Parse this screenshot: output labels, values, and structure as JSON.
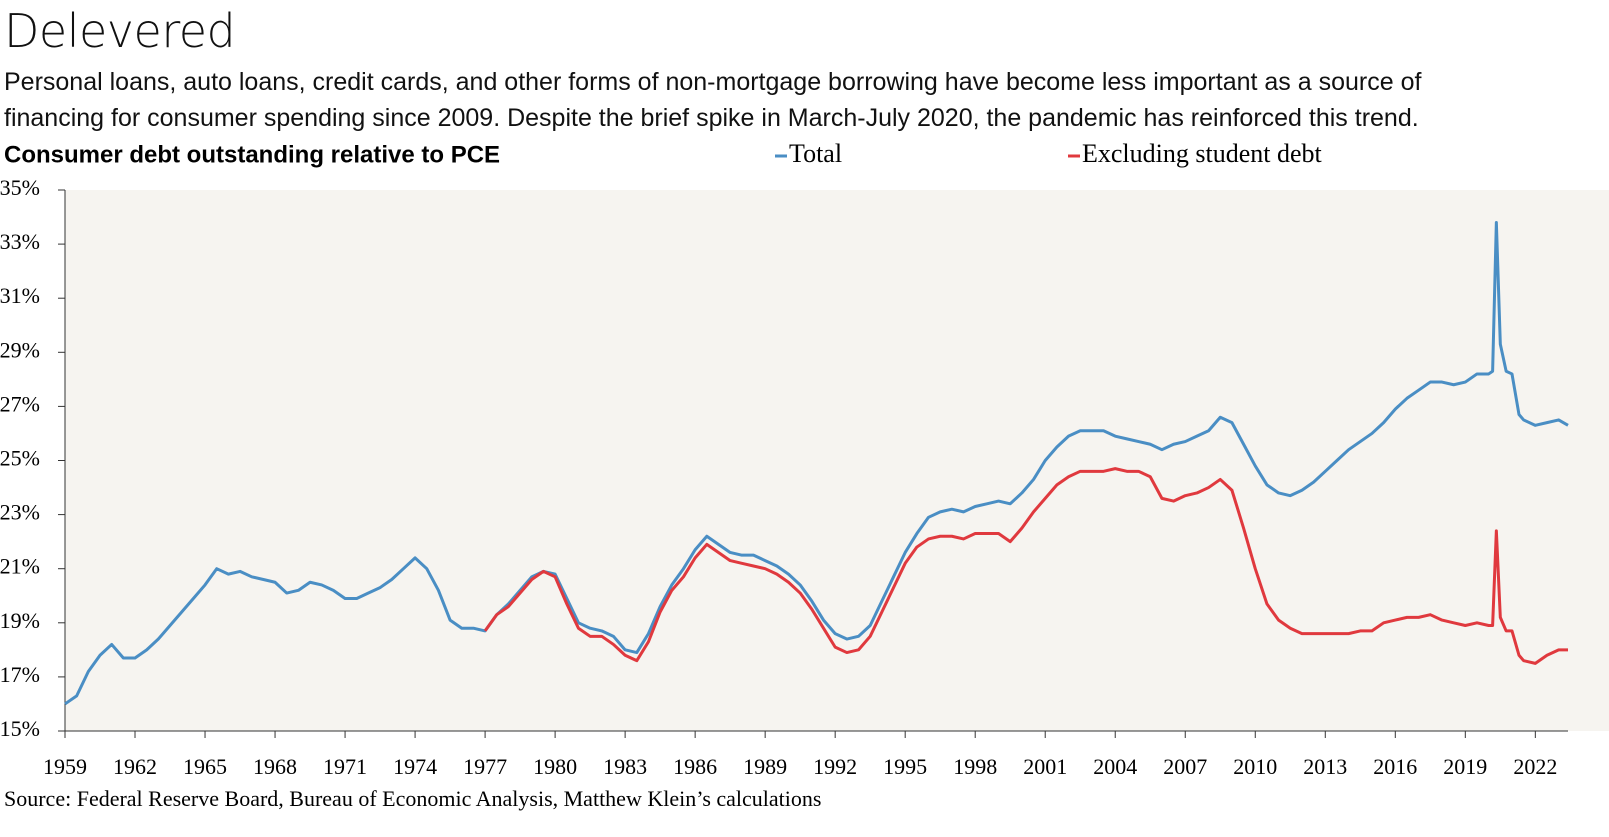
{
  "chart_data": {
    "type": "line",
    "title": "Delevered",
    "subtitle": "Personal loans, auto loans, credit cards, and other forms of non-mortgage borrowing have become less important as a source of financing for consumer spending since 2009. Despite the brief spike in March-July 2020, the pandemic has reinforced this trend.",
    "y_label": "Consumer debt outstanding relative to PCE",
    "source": "Source: Federal Reserve Board, Bureau of Economic Analysis, Matthew Klein’s calculations",
    "x": [
      1959,
      1959.5,
      1960,
      1960.5,
      1961,
      1961.5,
      1962,
      1962.5,
      1963,
      1963.5,
      1964,
      1964.5,
      1965,
      1965.5,
      1966,
      1966.5,
      1967,
      1967.5,
      1968,
      1968.5,
      1969,
      1969.5,
      1970,
      1970.5,
      1971,
      1971.5,
      1972,
      1972.5,
      1973,
      1973.5,
      1974,
      1974.5,
      1975,
      1975.5,
      1976,
      1976.5,
      1977,
      1977.5,
      1978,
      1978.5,
      1979,
      1979.5,
      1980,
      1980.5,
      1981,
      1981.5,
      1982,
      1982.5,
      1983,
      1983.5,
      1984,
      1984.5,
      1985,
      1985.5,
      1986,
      1986.5,
      1987,
      1987.5,
      1988,
      1988.5,
      1989,
      1989.5,
      1990,
      1990.5,
      1991,
      1991.5,
      1992,
      1992.5,
      1993,
      1993.5,
      1994,
      1994.5,
      1995,
      1995.5,
      1996,
      1996.5,
      1997,
      1997.5,
      1998,
      1998.5,
      1999,
      1999.5,
      2000,
      2000.5,
      2001,
      2001.5,
      2002,
      2002.5,
      2003,
      2003.5,
      2004,
      2004.5,
      2005,
      2005.5,
      2006,
      2006.5,
      2007,
      2007.5,
      2008,
      2008.5,
      2009,
      2009.5,
      2010,
      2010.5,
      2011,
      2011.5,
      2012,
      2012.5,
      2013,
      2013.5,
      2014,
      2014.5,
      2015,
      2015.5,
      2016,
      2016.5,
      2017,
      2017.5,
      2018,
      2018.5,
      2019,
      2019.5,
      2020,
      2020.17,
      2020.33,
      2020.5,
      2020.75,
      2021,
      2021.3,
      2021.5,
      2022,
      2022.5,
      2023,
      2023.4
    ],
    "series": [
      {
        "name": "Total",
        "color": "#4a8ec4",
        "values": [
          16.0,
          16.3,
          17.2,
          17.8,
          18.2,
          17.7,
          17.7,
          18.0,
          18.4,
          18.9,
          19.4,
          19.9,
          20.4,
          21.0,
          20.8,
          20.9,
          20.7,
          20.6,
          20.5,
          20.1,
          20.2,
          20.5,
          20.4,
          20.2,
          19.9,
          19.9,
          20.1,
          20.3,
          20.6,
          21.0,
          21.4,
          21.0,
          20.2,
          19.1,
          18.8,
          18.8,
          18.7,
          19.3,
          19.7,
          20.2,
          20.7,
          20.9,
          20.8,
          19.9,
          19.0,
          18.8,
          18.7,
          18.5,
          18.0,
          17.9,
          18.6,
          19.6,
          20.4,
          21.0,
          21.7,
          22.2,
          21.9,
          21.6,
          21.5,
          21.5,
          21.3,
          21.1,
          20.8,
          20.4,
          19.8,
          19.1,
          18.6,
          18.4,
          18.5,
          18.9,
          19.8,
          20.7,
          21.6,
          22.3,
          22.9,
          23.1,
          23.2,
          23.1,
          23.3,
          23.4,
          23.5,
          23.4,
          23.8,
          24.3,
          25.0,
          25.5,
          25.9,
          26.1,
          26.1,
          26.1,
          25.9,
          25.8,
          25.7,
          25.6,
          25.4,
          25.6,
          25.7,
          25.9,
          26.1,
          26.6,
          26.4,
          25.6,
          24.8,
          24.1,
          23.8,
          23.7,
          23.9,
          24.2,
          24.6,
          25.0,
          25.4,
          25.7,
          26.0,
          26.4,
          26.9,
          27.3,
          27.6,
          27.9,
          27.9,
          27.8,
          27.9,
          28.2,
          28.2,
          28.3,
          33.8,
          29.3,
          28.3,
          28.2,
          26.7,
          26.5,
          26.3,
          26.4,
          26.5,
          26.3
        ]
      },
      {
        "name": "Excluding student debt",
        "color": "#e0393e",
        "values": [
          null,
          null,
          null,
          null,
          null,
          null,
          null,
          null,
          null,
          null,
          null,
          null,
          null,
          null,
          null,
          null,
          null,
          null,
          null,
          null,
          null,
          null,
          null,
          null,
          null,
          null,
          null,
          null,
          null,
          null,
          null,
          null,
          null,
          null,
          null,
          null,
          18.7,
          19.3,
          19.6,
          20.1,
          20.6,
          20.9,
          20.7,
          19.7,
          18.8,
          18.5,
          18.5,
          18.2,
          17.8,
          17.6,
          18.3,
          19.4,
          20.2,
          20.7,
          21.4,
          21.9,
          21.6,
          21.3,
          21.2,
          21.1,
          21.0,
          20.8,
          20.5,
          20.1,
          19.5,
          18.8,
          18.1,
          17.9,
          18.0,
          18.5,
          19.4,
          20.3,
          21.2,
          21.8,
          22.1,
          22.2,
          22.2,
          22.1,
          22.3,
          22.3,
          22.3,
          22.0,
          22.5,
          23.1,
          23.6,
          24.1,
          24.4,
          24.6,
          24.6,
          24.6,
          24.7,
          24.6,
          24.6,
          24.4,
          23.6,
          23.5,
          23.7,
          23.8,
          24.0,
          24.3,
          23.9,
          22.5,
          21.0,
          19.7,
          19.1,
          18.8,
          18.6,
          18.6,
          18.6,
          18.6,
          18.6,
          18.7,
          18.7,
          19.0,
          19.1,
          19.2,
          19.2,
          19.3,
          19.1,
          19.0,
          18.9,
          19.0,
          18.9,
          18.9,
          22.4,
          19.2,
          18.7,
          18.7,
          17.8,
          17.6,
          17.5,
          17.8,
          18.0,
          18.0
        ]
      }
    ],
    "xlim": [
      1959,
      2023.4
    ],
    "xticks": [
      1959,
      1962,
      1965,
      1968,
      1971,
      1974,
      1977,
      1980,
      1983,
      1986,
      1989,
      1992,
      1995,
      1998,
      2001,
      2004,
      2007,
      2010,
      2013,
      2016,
      2019,
      2022
    ],
    "ylim": [
      15,
      35
    ],
    "yticks": [
      {
        "value": 15,
        "label": "15%"
      },
      {
        "value": 17,
        "label": "17%"
      },
      {
        "value": 19,
        "label": "19%"
      },
      {
        "value": 21,
        "label": "21%"
      },
      {
        "value": 23,
        "label": "23%"
      },
      {
        "value": 25,
        "label": "25%"
      },
      {
        "value": 27,
        "label": "27%"
      },
      {
        "value": 29,
        "label": "29%"
      },
      {
        "value": 31,
        "label": "31%"
      },
      {
        "value": 33,
        "label": "33%"
      },
      {
        "value": 35,
        "label": "35%"
      }
    ],
    "grid": false
  }
}
